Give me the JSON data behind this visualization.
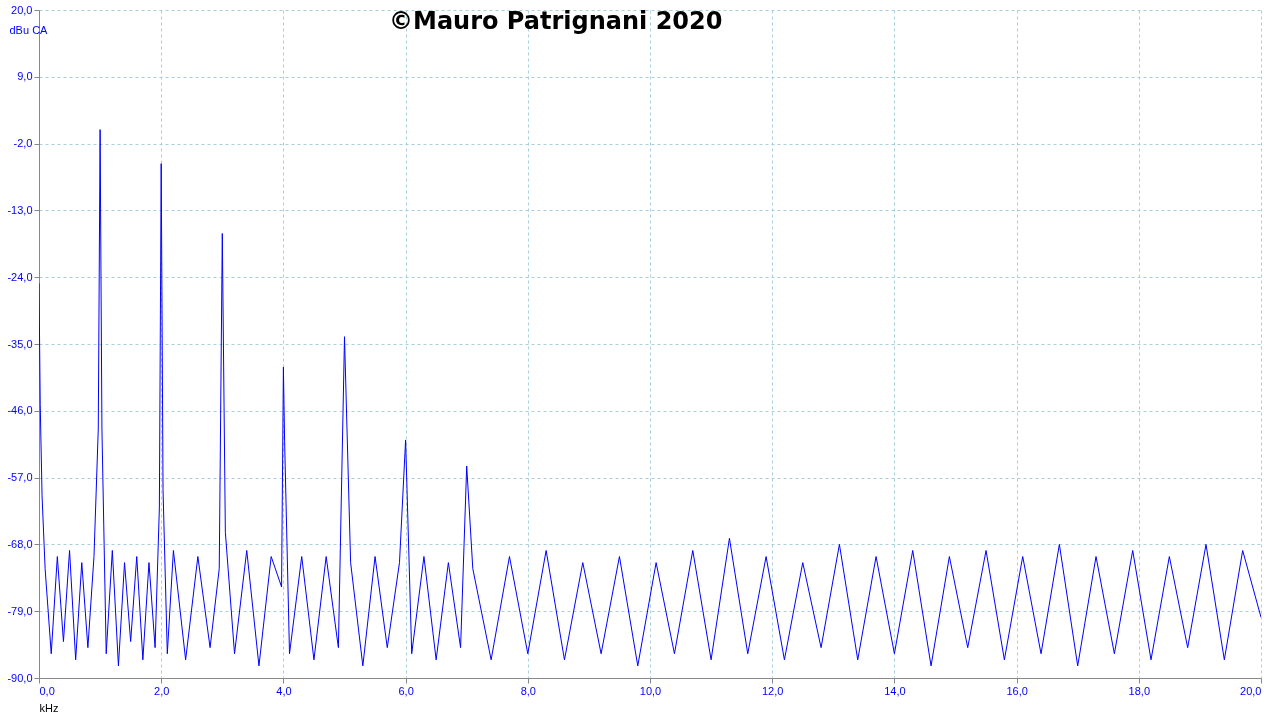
{
  "chart_data": {
    "type": "line",
    "xlabel": "kHz",
    "ylabel": "dBu CA",
    "annotations": [
      "©Mauro Patrignani 2020"
    ],
    "x": [
      0,
      0.02,
      0.05,
      0.1,
      0.2,
      0.3,
      0.4,
      0.5,
      0.6,
      0.7,
      0.8,
      0.9,
      0.97,
      1.0,
      1.03,
      1.1,
      1.2,
      1.3,
      1.4,
      1.5,
      1.6,
      1.7,
      1.8,
      1.9,
      1.97,
      2.0,
      2.03,
      2.1,
      2.2,
      2.4,
      2.6,
      2.8,
      2.95,
      3.0,
      3.05,
      3.2,
      3.4,
      3.6,
      3.8,
      3.97,
      4.0,
      4.02,
      4.1,
      4.3,
      4.5,
      4.7,
      4.9,
      5.0,
      5.1,
      5.3,
      5.5,
      5.7,
      5.9,
      6.0,
      6.1,
      6.3,
      6.5,
      6.7,
      6.9,
      7.0,
      7.1,
      7.4,
      7.7,
      8.0,
      8.3,
      8.6,
      8.9,
      9.2,
      9.5,
      9.8,
      10.1,
      10.4,
      10.7,
      11.0,
      11.3,
      11.6,
      11.9,
      12.2,
      12.5,
      12.8,
      13.1,
      13.4,
      13.7,
      14.0,
      14.3,
      14.6,
      14.9,
      15.2,
      15.5,
      15.8,
      16.1,
      16.4,
      16.7,
      17.0,
      17.3,
      17.6,
      17.9,
      18.2,
      18.5,
      18.8,
      19.1,
      19.4,
      19.7,
      20.0
    ],
    "series": [
      {
        "color": "#0000ff",
        "values": [
          -25,
          -45,
          -60,
          -72,
          -86,
          -70,
          -84,
          -69,
          -87,
          -71,
          -85,
          -70,
          -49,
          0.3,
          -49,
          -86,
          -69,
          -88,
          -71,
          -84,
          -70,
          -87,
          -71,
          -85,
          -62,
          -5.3,
          -59,
          -86,
          -69,
          -87,
          -70,
          -85,
          -72,
          -16.8,
          -66,
          -86,
          -69,
          -88,
          -70,
          -75,
          -38.8,
          -51,
          -86,
          -70,
          -87,
          -70,
          -85,
          -33.8,
          -71,
          -88,
          -70,
          -85,
          -71,
          -50.8,
          -86,
          -70,
          -87,
          -71,
          -85,
          -55.1,
          -72,
          -87,
          -70,
          -86,
          -69,
          -87,
          -71,
          -86,
          -70,
          -88,
          -71,
          -86,
          -69,
          -87,
          -67,
          -86,
          -70,
          -87,
          -71,
          -85,
          -68,
          -87,
          -70,
          -86,
          -69,
          -88,
          -70,
          -85,
          -69,
          -87,
          -70,
          -86,
          -68,
          -88,
          -70,
          -86,
          -69,
          -87,
          -70,
          -85,
          -68,
          -87,
          -69,
          -80
        ]
      }
    ],
    "xlim": [
      0,
      20
    ],
    "ylim": [
      -90,
      20
    ],
    "xticks": [
      {
        "value": 0,
        "label": "0,0"
      },
      {
        "value": 2,
        "label": "2,0"
      },
      {
        "value": 4,
        "label": "4,0"
      },
      {
        "value": 6,
        "label": "6,0"
      },
      {
        "value": 8,
        "label": "8,0"
      },
      {
        "value": 10,
        "label": "10,0"
      },
      {
        "value": 12,
        "label": "12,0"
      },
      {
        "value": 14,
        "label": "14,0"
      },
      {
        "value": 16,
        "label": "16,0"
      },
      {
        "value": 18,
        "label": "18,0"
      },
      {
        "value": 20,
        "label": "20,0"
      }
    ],
    "yticks": [
      {
        "value": -90,
        "label": "-90,0"
      },
      {
        "value": -79,
        "label": "-79,0"
      },
      {
        "value": -68,
        "label": "-68,0"
      },
      {
        "value": -57,
        "label": "-57,0"
      },
      {
        "value": -46,
        "label": "-46,0"
      },
      {
        "value": -35,
        "label": "-35,0"
      },
      {
        "value": -24,
        "label": "-24,0"
      },
      {
        "value": -13,
        "label": "-13,0"
      },
      {
        "value": -2,
        "label": "-2,0"
      },
      {
        "value": 9,
        "label": "9,0"
      },
      {
        "value": 20,
        "label": "20,0"
      }
    ],
    "grid": true,
    "marker": "none",
    "line_style": "solid"
  }
}
